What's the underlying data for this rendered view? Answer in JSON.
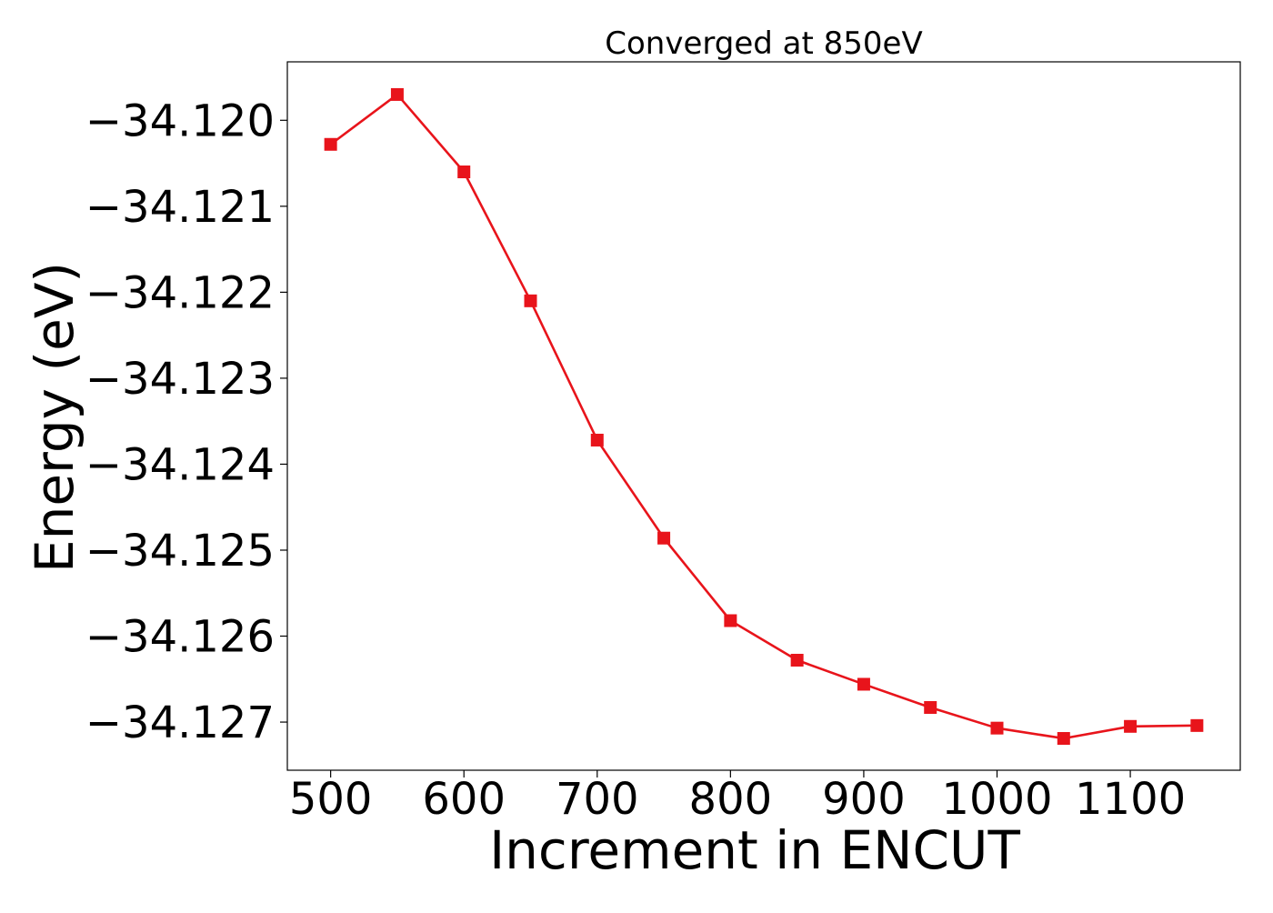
{
  "chart_data": {
    "type": "line",
    "title": "Converged at 850eV",
    "xlabel": "Increment in ENCUT",
    "ylabel": "Energy (eV)",
    "x": [
      500,
      550,
      600,
      650,
      700,
      750,
      800,
      850,
      900,
      950,
      1000,
      1050,
      1100,
      1150
    ],
    "y": [
      -34.12028,
      -34.1197,
      -34.1206,
      -34.1221,
      -34.12372,
      -34.12486,
      -34.12582,
      -34.12628,
      -34.12656,
      -34.12683,
      -34.12707,
      -34.12719,
      -34.12705,
      -34.12704
    ],
    "xlim": [
      467.5,
      1182.5
    ],
    "ylim": [
      -34.12756,
      -34.11932
    ],
    "xticks": [
      500,
      600,
      700,
      800,
      900,
      1000,
      1100
    ],
    "xtick_labels": [
      "500",
      "600",
      "700",
      "800",
      "900",
      "1000",
      "1100"
    ],
    "yticks": [
      -34.12,
      -34.121,
      -34.122,
      -34.123,
      -34.124,
      -34.125,
      -34.126,
      -34.127
    ],
    "ytick_labels": [
      "−34.120",
      "−34.121",
      "−34.122",
      "−34.123",
      "−34.124",
      "−34.125",
      "−34.126",
      "−34.127"
    ],
    "grid": false,
    "legend": "none",
    "series_color": "#e8141b",
    "marker": "square"
  }
}
